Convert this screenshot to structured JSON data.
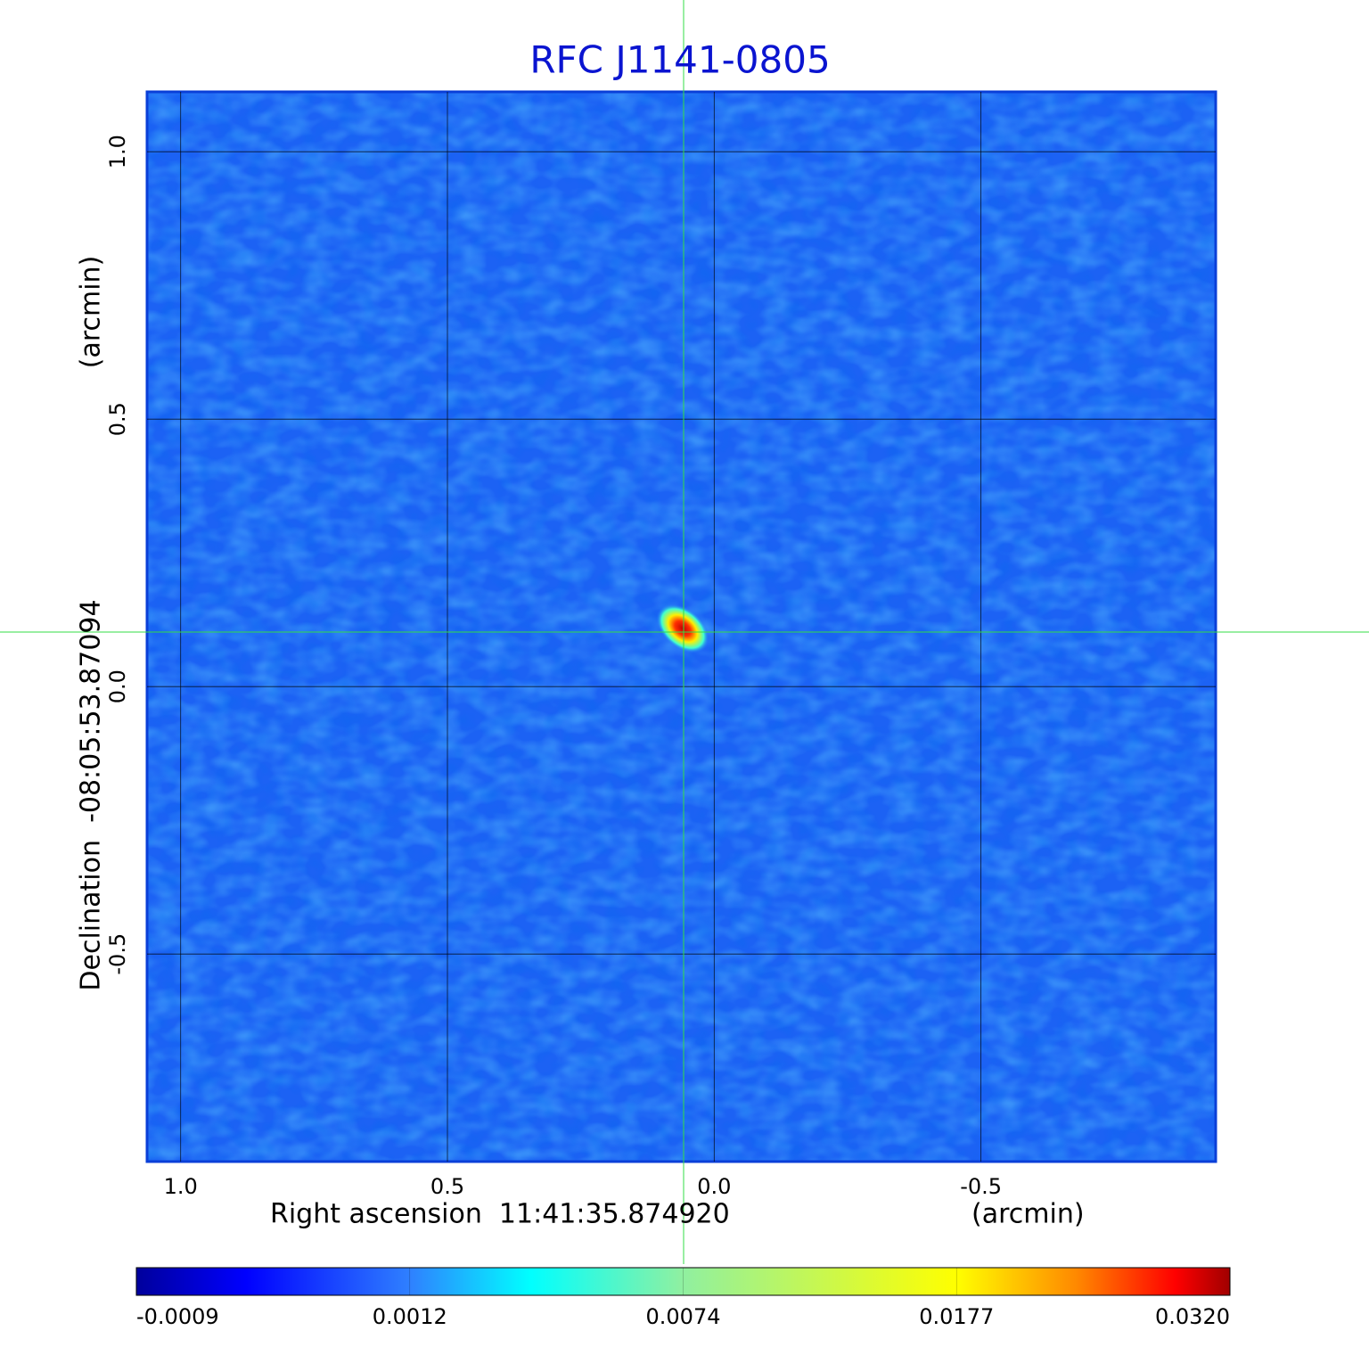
{
  "chart_data": {
    "type": "image",
    "title": "RFC J1141-0805",
    "xlabel": "Right ascension  11:41:35.874920",
    "xunit": "(arcmin)",
    "ylabel": "Declination  -08:05:53.87094",
    "yunit": "(arcmin)",
    "xlim": [
      1.063,
      -0.94
    ],
    "ylim": [
      -0.888,
      1.112
    ],
    "xticks": [
      {
        "value": 1,
        "label": "1.0"
      },
      0.5,
      {
        "value": 0,
        "label": "0.0"
      },
      -0.5
    ],
    "yticks": [
      {
        "value": 1,
        "label": "1.0"
      },
      0.5,
      {
        "value": 0,
        "label": "0.0"
      },
      -0.5
    ],
    "grid": true,
    "colorbar_ticks": [
      -0.0009,
      0.0012,
      0.0074,
      0.0177,
      {
        "value": 0.032,
        "label": "0.0320"
      }
    ]
  }
}
